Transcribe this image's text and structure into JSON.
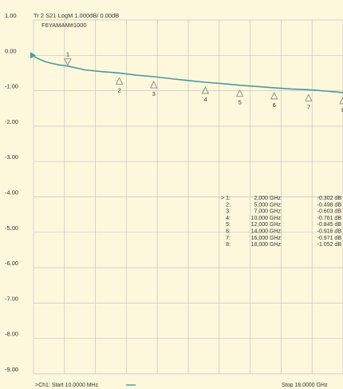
{
  "header": {
    "trace_title": "Tr 2  S21 LogM 1.000dB/  0.00dB",
    "device_label": "F6YAMAM#1000"
  },
  "footer": {
    "start_label": ">Ch1: Start  10.0000 MHz",
    "stop_label": "Stop  18.0000 GHz"
  },
  "colors": {
    "background": "#fdf8dc",
    "grid": "#c4c4c4",
    "trace": "#4a9aa0",
    "marker": "#8a8a8a"
  },
  "chart_data": {
    "type": "line",
    "title": "Tr 2  S21 LogM 1.000dB/  0.00dB",
    "xlim": [
      0.01,
      18.0
    ],
    "ylim": [
      -9.0,
      1.0
    ],
    "xunit": "GHz",
    "yunit": "dB",
    "ytick_labels": [
      "1.00",
      "0.00",
      "-1.00",
      "-2.00",
      "-3.00",
      "-4.00",
      "-5.00",
      "-6.00",
      "-7.00",
      "-8.00",
      "-9.00"
    ],
    "grid": true,
    "series": [
      {
        "x": [
          0.01,
          0.3,
          0.7,
          1.0,
          1.5,
          2.0,
          3.0,
          4.0,
          5.0,
          6.0,
          7.0,
          8.0,
          9.0,
          10.0,
          11.0,
          12.0,
          13.0,
          14.0,
          15.0,
          16.0,
          17.0,
          18.0
        ],
        "y": [
          -0.02,
          -0.1,
          -0.18,
          -0.22,
          -0.27,
          -0.302,
          -0.41,
          -0.46,
          -0.498,
          -0.56,
          -0.603,
          -0.66,
          -0.71,
          -0.761,
          -0.8,
          -0.845,
          -0.88,
          -0.916,
          -0.95,
          -0.971,
          -1.01,
          -1.052
        ]
      }
    ],
    "markers": [
      {
        "id": "1",
        "x": 2.0,
        "y": -0.302,
        "freq_label": "2,000 GHz",
        "value_label": "-0.302 dB"
      },
      {
        "id": "2",
        "x": 5.0,
        "y": -0.498,
        "freq_label": "5,000 GHz",
        "value_label": "-0.498 dB"
      },
      {
        "id": "3",
        "x": 7.0,
        "y": -0.603,
        "freq_label": "7,000 GHz",
        "value_label": "-0.603 dB"
      },
      {
        "id": "4",
        "x": 10.0,
        "y": -0.761,
        "freq_label": "10,000 GHz",
        "value_label": "-0.761 dB"
      },
      {
        "id": "5",
        "x": 12.0,
        "y": -0.845,
        "freq_label": "12,000 GHz",
        "value_label": "-0.845 dB"
      },
      {
        "id": "6",
        "x": 14.0,
        "y": -0.916,
        "freq_label": "14,000 GHz",
        "value_label": "-0.916 dB"
      },
      {
        "id": "7",
        "x": 16.0,
        "y": -0.971,
        "freq_label": "16,000 GHz",
        "value_label": "-0.971 dB"
      },
      {
        "id": "8",
        "x": 18.0,
        "y": -1.052,
        "freq_label": "18,000 GHz",
        "value_label": "-1.052 dB"
      }
    ],
    "marker_table_ids": [
      "> 1:",
      "2:",
      "3:",
      "4:",
      "5:",
      "6:",
      "7:",
      "8:"
    ]
  }
}
